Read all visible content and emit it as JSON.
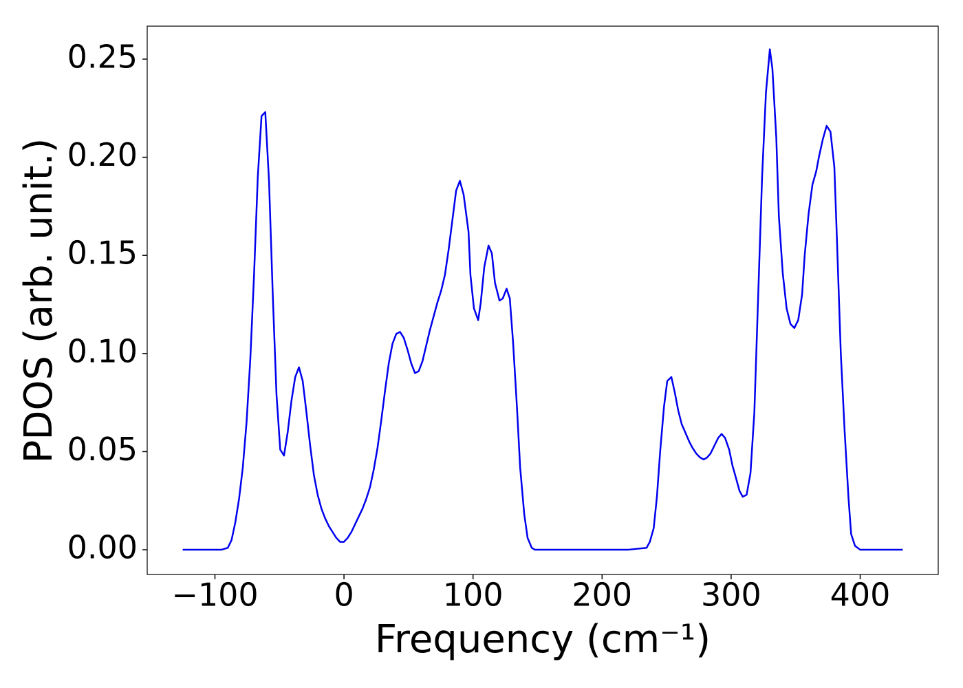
{
  "chart_data": {
    "type": "line",
    "xlabel": "Frequency (cm⁻¹)",
    "ylabel": "PDOS (arb. unit.)",
    "x": [
      -125,
      -110,
      -100,
      -95,
      -90.0,
      -87.1,
      -84.2,
      -81.3,
      -78.4,
      -75.5,
      -72.6,
      -69.7,
      -66.8,
      -63.9,
      -61.0,
      -58.1,
      -55.2,
      -52.3,
      -49.4,
      -46.5,
      -43.6,
      -40.7,
      -37.8,
      -34.9,
      -32.0,
      -29.1,
      -26.2,
      -23.3,
      -20.4,
      -17.5,
      -14.6,
      -11.7,
      -8.8,
      -5.9,
      -3.0,
      -0.1,
      2.8,
      5.7,
      8.6,
      11.5,
      14.4,
      17.3,
      20.2,
      23.1,
      26.0,
      28.9,
      31.8,
      34.7,
      37.6,
      40.5,
      43.4,
      46.3,
      49.2,
      52.1,
      55.0,
      57.9,
      60.8,
      63.7,
      66.6,
      69.5,
      72.4,
      75.3,
      78.2,
      81.1,
      84.0,
      86.9,
      89.8,
      92.7,
      96.5,
      98,
      100.7,
      104,
      106,
      108.7,
      112,
      114.6,
      117,
      120.5,
      123,
      126,
      128.5,
      131,
      134,
      136.5,
      139.7,
      142.3,
      145.5,
      148,
      160,
      180,
      200,
      220,
      234.5,
      237,
      240,
      242.5,
      245,
      248,
      250.5,
      253.7,
      256.4,
      259,
      261.7,
      265,
      267.6,
      270,
      273,
      276,
      278.8,
      281.4,
      284,
      287,
      290,
      292.6,
      295.3,
      298.5,
      301,
      304,
      306.5,
      309,
      312,
      315,
      318,
      321,
      324,
      327,
      330,
      332,
      335,
      337,
      340,
      343,
      346,
      349,
      352,
      355,
      357,
      360,
      363,
      366,
      368,
      371,
      374,
      377,
      380,
      382,
      385,
      388,
      391,
      393,
      396,
      400,
      410,
      433
    ],
    "series": [
      {
        "color": "#0000ee",
        "values": [
          0,
          0,
          0,
          0,
          0.001,
          0.005,
          0.014,
          0.026,
          0.042,
          0.065,
          0.097,
          0.14,
          0.19,
          0.221,
          0.223,
          0.188,
          0.13,
          0.079,
          0.051,
          0.048,
          0.06,
          0.076,
          0.088,
          0.093,
          0.086,
          0.07,
          0.053,
          0.038,
          0.028,
          0.021,
          0.016,
          0.012,
          0.009,
          0.006,
          0.004,
          0.004,
          0.006,
          0.009,
          0.013,
          0.017,
          0.021,
          0.026,
          0.032,
          0.041,
          0.052,
          0.066,
          0.081,
          0.095,
          0.105,
          0.11,
          0.111,
          0.108,
          0.102,
          0.095,
          0.09,
          0.091,
          0.096,
          0.104,
          0.112,
          0.119,
          0.126,
          0.132,
          0.14,
          0.153,
          0.168,
          0.183,
          0.188,
          0.181,
          0.162,
          0.14,
          0.123,
          0.117,
          0.126,
          0.144,
          0.155,
          0.151,
          0.136,
          0.127,
          0.128,
          0.133,
          0.128,
          0.106,
          0.073,
          0.042,
          0.018,
          0.006,
          0.001,
          0,
          0,
          0,
          0,
          0,
          0.001,
          0.004,
          0.011,
          0.027,
          0.05,
          0.073,
          0.086,
          0.088,
          0.08,
          0.071,
          0.064,
          0.059,
          0.055,
          0.052,
          0.049,
          0.047,
          0.046,
          0.047,
          0.049,
          0.053,
          0.057,
          0.059,
          0.057,
          0.051,
          0.043,
          0.036,
          0.03,
          0.027,
          0.028,
          0.039,
          0.07,
          0.13,
          0.19,
          0.233,
          0.255,
          0.245,
          0.21,
          0.17,
          0.141,
          0.123,
          0.115,
          0.113,
          0.117,
          0.13,
          0.15,
          0.171,
          0.186,
          0.193,
          0.2,
          0.209,
          0.216,
          0.213,
          0.195,
          0.158,
          0.1,
          0.06,
          0.026,
          0.008,
          0.002,
          0,
          0,
          0
        ]
      }
    ],
    "xlim": [
      -152.5,
      460.5
    ],
    "ylim": [
      -0.0126,
      0.2668
    ],
    "xticks": [
      {
        "value": -100,
        "label": "−100"
      },
      0,
      100,
      200,
      300,
      400
    ],
    "yticks": [
      {
        "value": 0,
        "label": "0.00"
      },
      {
        "value": 0.05,
        "label": "0.05"
      },
      {
        "value": 0.1,
        "label": "0.10"
      },
      {
        "value": 0.15,
        "label": "0.15"
      },
      {
        "value": 0.2,
        "label": "0.20"
      },
      {
        "value": 0.25,
        "label": "0.25"
      }
    ],
    "grid": false
  }
}
